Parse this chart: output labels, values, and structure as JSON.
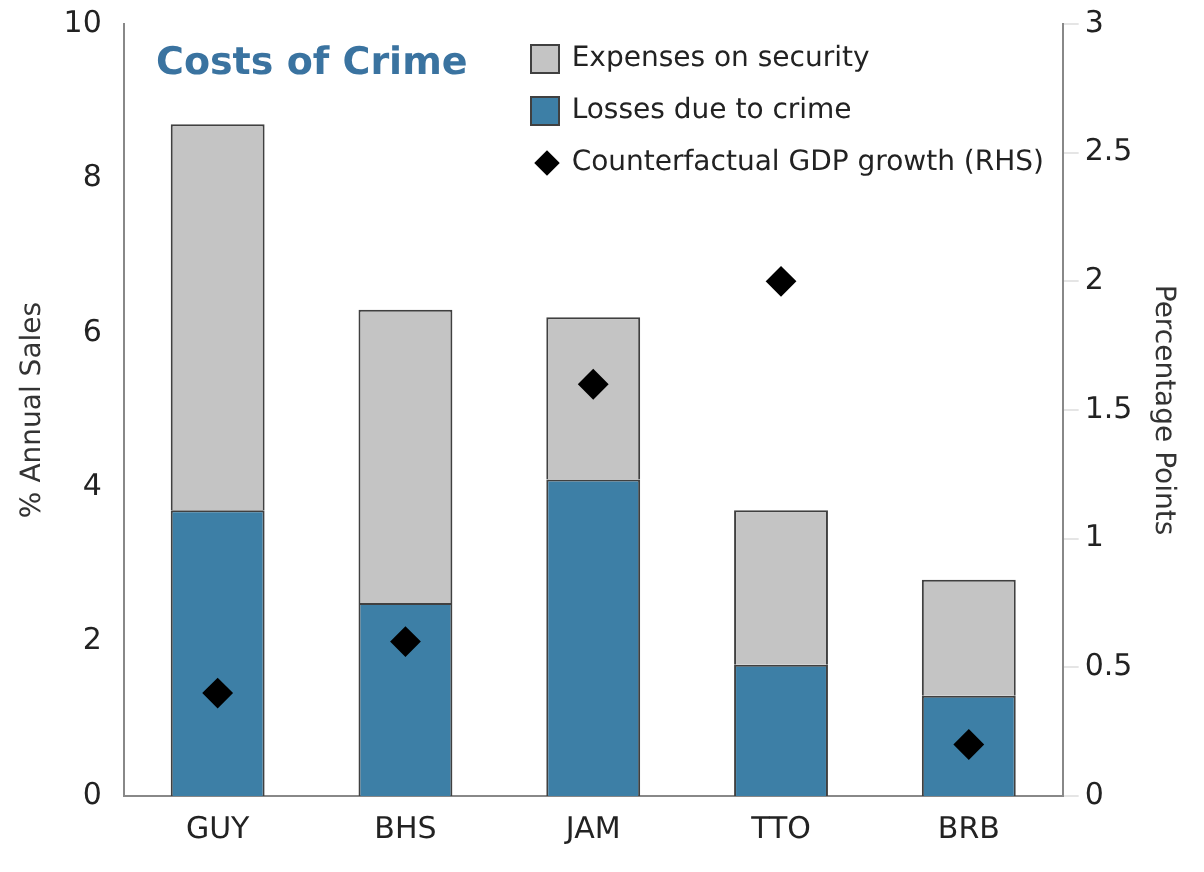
{
  "chart_data": {
    "type": "bar",
    "title": "Costs of Crime",
    "ylabel": "% Annual Sales",
    "y2label": "Percentage Points",
    "categories": [
      "GUY",
      "BHS",
      "JAM",
      "TTO",
      "BRB"
    ],
    "stacked": true,
    "series": [
      {
        "name": "Losses due to crime",
        "color": "#3d7fa6",
        "values": [
          3.7,
          2.5,
          4.1,
          1.7,
          1.3
        ]
      },
      {
        "name": "Expenses on security",
        "color": "#c4c4c4",
        "values": [
          5.0,
          3.8,
          2.1,
          2.0,
          1.5
        ]
      },
      {
        "name": "Counterfactual GDP growth (RHS)",
        "type": "scatter",
        "axis": "y2",
        "color": "#000000",
        "values": [
          0.4,
          0.6,
          1.6,
          2.0,
          0.2
        ]
      }
    ],
    "ylim": [
      0,
      10
    ],
    "yticks": [
      0,
      2,
      4,
      6,
      8,
      10
    ],
    "y2lim": [
      0,
      3
    ],
    "y2ticks": [
      0,
      0.5,
      1,
      1.5,
      2,
      2.5,
      3
    ],
    "marker": "diamond",
    "legend": "top right",
    "grid": false
  }
}
